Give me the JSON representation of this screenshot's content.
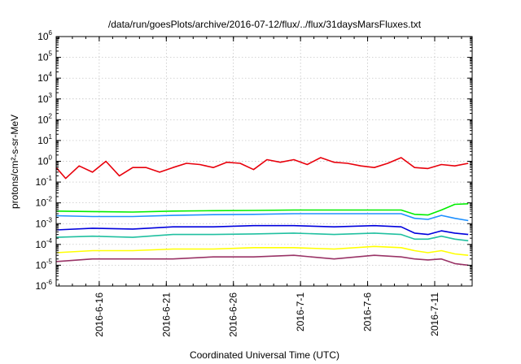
{
  "chart_data": {
    "type": "line",
    "title": "/data/run/goesPlots/archive/2016-07-12/flux/../flux/31daysMarsFluxes.txt",
    "xlabel": "Coordinated Universal Time (UTC)",
    "ylabel": "protons/cm²-s-sr-MeV",
    "y_scale": "log",
    "ylim": [
      1e-06,
      1000000.0
    ],
    "xlim": [
      "2016-06-12T19:00",
      "2016-07-13T19:00"
    ],
    "grid": true,
    "y_ticks": [
      {
        "base": "10",
        "exp": "-6",
        "value": 1e-06
      },
      {
        "base": "10",
        "exp": "-5",
        "value": 1e-05
      },
      {
        "base": "10",
        "exp": "-4",
        "value": 0.0001
      },
      {
        "base": "10",
        "exp": "-3",
        "value": 0.001
      },
      {
        "base": "10",
        "exp": "-2",
        "value": 0.01
      },
      {
        "base": "10",
        "exp": "-1",
        "value": 0.1
      },
      {
        "base": "10",
        "exp": "0",
        "value": 1
      },
      {
        "base": "10",
        "exp": "1",
        "value": 10
      },
      {
        "base": "10",
        "exp": "2",
        "value": 100
      },
      {
        "base": "10",
        "exp": "3",
        "value": 1000
      },
      {
        "base": "10",
        "exp": "4",
        "value": 10000
      },
      {
        "base": "10",
        "exp": "5",
        "value": 100000
      },
      {
        "base": "10",
        "exp": "6",
        "value": 1000000
      }
    ],
    "x_ticks": [
      {
        "label": "2016-6-16",
        "date": "2016-06-16"
      },
      {
        "label": "2016-6-21",
        "date": "2016-06-21"
      },
      {
        "label": "2016-6-26",
        "date": "2016-06-26"
      },
      {
        "label": "2016-7-1",
        "date": "2016-07-01"
      },
      {
        "label": "2016-7-6",
        "date": "2016-07-06"
      },
      {
        "label": "2016-7-11",
        "date": "2016-07-11"
      }
    ],
    "series": [
      {
        "color": "#e8000b",
        "x": [
          "2016-06-12",
          "2016-06-13",
          "2016-06-14",
          "2016-06-15",
          "2016-06-16",
          "2016-06-17",
          "2016-06-18",
          "2016-06-19",
          "2016-06-20",
          "2016-06-21",
          "2016-06-22",
          "2016-06-23",
          "2016-06-24",
          "2016-06-25",
          "2016-06-26",
          "2016-06-27",
          "2016-06-28",
          "2016-06-29",
          "2016-06-30",
          "2016-07-01",
          "2016-07-02",
          "2016-07-03",
          "2016-07-04",
          "2016-07-05",
          "2016-07-06",
          "2016-07-07",
          "2016-07-08",
          "2016-07-09",
          "2016-07-10",
          "2016-07-11",
          "2016-07-12",
          "2016-07-13"
        ],
        "values": [
          0.5,
          0.15,
          0.6,
          0.3,
          1.0,
          0.2,
          0.5,
          0.5,
          0.3,
          0.5,
          0.8,
          0.7,
          0.5,
          0.9,
          0.8,
          0.4,
          1.2,
          0.9,
          1.2,
          0.7,
          1.5,
          0.9,
          0.8,
          0.6,
          0.5,
          0.8,
          1.5,
          0.5,
          0.45,
          0.7,
          0.6,
          0.8
        ]
      },
      {
        "color": "#00ee00",
        "x": [
          "2016-06-12",
          "2016-06-15",
          "2016-06-18",
          "2016-06-21",
          "2016-06-24",
          "2016-06-27",
          "2016-06-30",
          "2016-07-03",
          "2016-07-06",
          "2016-07-08",
          "2016-07-09",
          "2016-07-10",
          "2016-07-11",
          "2016-07-12",
          "2016-07-13"
        ],
        "values": [
          0.004,
          0.0038,
          0.0036,
          0.004,
          0.0042,
          0.0043,
          0.0045,
          0.0045,
          0.0045,
          0.0045,
          0.0028,
          0.0026,
          0.0045,
          0.0085,
          0.009
        ]
      },
      {
        "color": "#1e90ff",
        "x": [
          "2016-06-12",
          "2016-06-15",
          "2016-06-18",
          "2016-06-21",
          "2016-06-24",
          "2016-06-27",
          "2016-06-30",
          "2016-07-03",
          "2016-07-06",
          "2016-07-08",
          "2016-07-09",
          "2016-07-10",
          "2016-07-11",
          "2016-07-12",
          "2016-07-13"
        ],
        "values": [
          0.0024,
          0.0022,
          0.0022,
          0.0025,
          0.0027,
          0.0028,
          0.003,
          0.003,
          0.003,
          0.003,
          0.0018,
          0.0016,
          0.0025,
          0.0018,
          0.0014
        ]
      },
      {
        "color": "#0000dd",
        "x": [
          "2016-06-12",
          "2016-06-15",
          "2016-06-18",
          "2016-06-21",
          "2016-06-24",
          "2016-06-27",
          "2016-06-30",
          "2016-07-03",
          "2016-07-06",
          "2016-07-08",
          "2016-07-09",
          "2016-07-10",
          "2016-07-11",
          "2016-07-12",
          "2016-07-13"
        ],
        "values": [
          0.0005,
          0.0006,
          0.00055,
          0.0007,
          0.0007,
          0.0008,
          0.0008,
          0.0007,
          0.0008,
          0.0007,
          0.00035,
          0.0003,
          0.00045,
          0.00035,
          0.0003
        ]
      },
      {
        "color": "#20c0a0",
        "x": [
          "2016-06-12",
          "2016-06-15",
          "2016-06-18",
          "2016-06-21",
          "2016-06-24",
          "2016-06-27",
          "2016-06-30",
          "2016-07-03",
          "2016-07-06",
          "2016-07-08",
          "2016-07-09",
          "2016-07-10",
          "2016-07-11",
          "2016-07-12",
          "2016-07-13"
        ],
        "values": [
          0.00022,
          0.00025,
          0.00022,
          0.0003,
          0.0003,
          0.00032,
          0.00035,
          0.0003,
          0.00035,
          0.0003,
          0.00018,
          0.00018,
          0.00025,
          0.00018,
          0.00015
        ]
      },
      {
        "color": "#ffff00",
        "x": [
          "2016-06-12",
          "2016-06-15",
          "2016-06-18",
          "2016-06-21",
          "2016-06-24",
          "2016-06-27",
          "2016-06-30",
          "2016-07-03",
          "2016-07-06",
          "2016-07-08",
          "2016-07-09",
          "2016-07-10",
          "2016-07-11",
          "2016-07-12",
          "2016-07-13"
        ],
        "values": [
          4e-05,
          5e-05,
          5e-05,
          6e-05,
          6e-05,
          7e-05,
          7e-05,
          6e-05,
          8e-05,
          7e-05,
          5e-05,
          4e-05,
          5e-05,
          3.5e-05,
          3e-05
        ]
      },
      {
        "color": "#993366",
        "x": [
          "2016-06-12",
          "2016-06-15",
          "2016-06-18",
          "2016-06-21",
          "2016-06-24",
          "2016-06-27",
          "2016-06-30",
          "2016-07-03",
          "2016-07-06",
          "2016-07-08",
          "2016-07-09",
          "2016-07-10",
          "2016-07-11",
          "2016-07-12",
          "2016-07-13"
        ],
        "values": [
          1.5e-05,
          2e-05,
          2e-05,
          2e-05,
          2.5e-05,
          2.5e-05,
          3e-05,
          2e-05,
          3e-05,
          2.5e-05,
          2e-05,
          1.8e-05,
          2e-05,
          1.2e-05,
          1e-05
        ]
      }
    ]
  }
}
